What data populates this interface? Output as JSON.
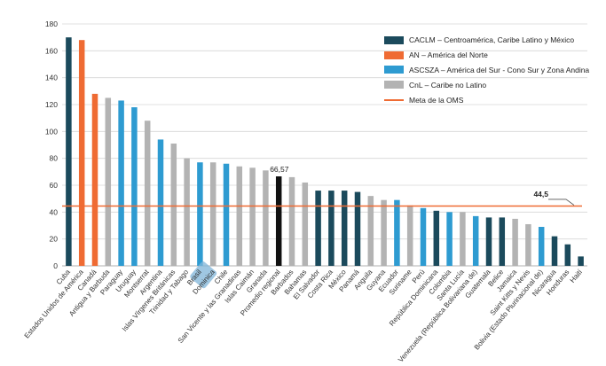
{
  "chart_data": {
    "type": "bar",
    "title": "",
    "xlabel": "",
    "ylabel": "",
    "ylim": [
      0,
      180
    ],
    "yticks": [
      0,
      20,
      40,
      60,
      80,
      100,
      120,
      140,
      160,
      180
    ],
    "grid": true,
    "legend_position": "top-right",
    "colors": {
      "CACLM": "#1b4a5c",
      "AN": "#ef6b33",
      "ASCSZA": "#2e9bd1",
      "CnL": "#b3b3b3",
      "regional": "#111111",
      "target": "#ef6b33"
    },
    "legend": [
      {
        "group": "CACLM",
        "label": "CACLM – Centroamérica, Caribe Latino y México"
      },
      {
        "group": "AN",
        "label": "AN – América del Norte"
      },
      {
        "group": "ASCSZA",
        "label": "ASCSZA – América del Sur - Cono Sur y Zona Andina"
      },
      {
        "group": "CnL",
        "label": "CnL – Caribe no Latino"
      },
      {
        "group": "target",
        "label": "Meta de la OMS",
        "line": true
      }
    ],
    "reference_line": {
      "value": 44.5,
      "label": "44,5",
      "name": "Meta de la OMS"
    },
    "annotations": [
      {
        "category": "Promedio regional",
        "label": "66,57"
      }
    ],
    "highlight_label": "Brasil",
    "categories": [
      "Cuba",
      "Estados Unidos de América",
      "Canadá",
      "Antigua y Barbuda",
      "Paraguay",
      "Uruguay",
      "Montserrat",
      "Argentina",
      "Islas Vírgenes Británicas",
      "Trinidad y Tabago",
      "Brasil",
      "Dominica",
      "Chile",
      "San Vicente y las Granadinas",
      "Islas Caimán",
      "Granada",
      "Promedio regional",
      "Barbados",
      "Bahamas",
      "El Salvador",
      "Costa Rica",
      "México",
      "Panamá",
      "Anguila",
      "Guyana",
      "Ecuador",
      "Suriname",
      "Perú",
      "República Dominicana",
      "Colombia",
      "Santa Lucía",
      "Venezuela (República Bolivariana de)",
      "Guatemala",
      "Belice",
      "Jamaica",
      "Saint Kitts y Nevis",
      "Bolivia (Estado Plurinacional de)",
      "Nicaragua",
      "Honduras",
      "Haití"
    ],
    "values": [
      170,
      168,
      128,
      125,
      123,
      118,
      108,
      94,
      91,
      80,
      77,
      77,
      76,
      74,
      73,
      71,
      66.57,
      66,
      62,
      56,
      56,
      56,
      55,
      52,
      49,
      49,
      45,
      43,
      41,
      40,
      40,
      37,
      36,
      36,
      35,
      31,
      29,
      22,
      16,
      7
    ],
    "groups": [
      "CACLM",
      "AN",
      "AN",
      "CnL",
      "ASCSZA",
      "ASCSZA",
      "CnL",
      "ASCSZA",
      "CnL",
      "CnL",
      "ASCSZA",
      "CnL",
      "ASCSZA",
      "CnL",
      "CnL",
      "CnL",
      "regional",
      "CnL",
      "CnL",
      "CACLM",
      "CACLM",
      "CACLM",
      "CACLM",
      "CnL",
      "CnL",
      "ASCSZA",
      "CnL",
      "ASCSZA",
      "CACLM",
      "ASCSZA",
      "CnL",
      "ASCSZA",
      "CACLM",
      "CACLM",
      "CnL",
      "CnL",
      "ASCSZA",
      "CACLM",
      "CACLM",
      "CACLM"
    ]
  }
}
